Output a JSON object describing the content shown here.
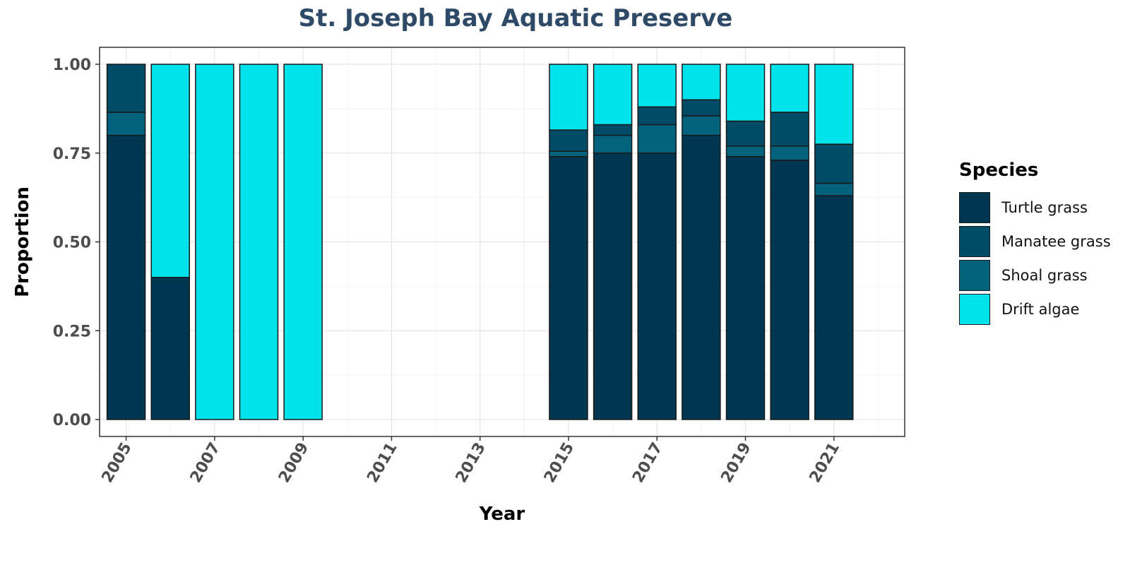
{
  "chart_data": {
    "type": "bar",
    "stacked": true,
    "title": "St. Joseph Bay Aquatic Preserve",
    "xlabel": "Year",
    "ylabel": "Proportion",
    "ylim": [
      0,
      1
    ],
    "yticks": [
      "0.00",
      "0.25",
      "0.50",
      "0.75",
      "1.00"
    ],
    "xticks": [
      "2005",
      "2007",
      "2009",
      "2011",
      "2013",
      "2015",
      "2017",
      "2019",
      "2021"
    ],
    "xlim": [
      2004.4,
      2022.6
    ],
    "grid": true,
    "legend_title": "Species",
    "legend_position": "right",
    "categories": [
      2005,
      2006,
      2007,
      2008,
      2009,
      2015,
      2016,
      2017,
      2018,
      2019,
      2020,
      2021
    ],
    "series": [
      {
        "name": "Turtle grass",
        "color": "#003750",
        "values": [
          0.8,
          0.4,
          0,
          0,
          0,
          0.74,
          0.75,
          0.75,
          0.8,
          0.74,
          0.73,
          0.63
        ]
      },
      {
        "name": "Shoal grass",
        "color": "#00627d",
        "values": [
          0.065,
          0,
          0,
          0,
          0,
          0.015,
          0.05,
          0.08,
          0.055,
          0.03,
          0.04,
          0.035
        ]
      },
      {
        "name": "Manatee grass",
        "color": "#004c66",
        "values": [
          0.135,
          0,
          0,
          0,
          0,
          0.06,
          0.03,
          0.05,
          0.045,
          0.07,
          0.095,
          0.11
        ]
      },
      {
        "name": "Drift algae",
        "color": "#00e3ec",
        "values": [
          0,
          0.6,
          1.0,
          1.0,
          1.0,
          0.185,
          0.17,
          0.12,
          0.1,
          0.16,
          0.135,
          0.225
        ]
      }
    ],
    "legend_order": [
      "Turtle grass",
      "Manatee grass",
      "Shoal grass",
      "Drift algae"
    ]
  }
}
